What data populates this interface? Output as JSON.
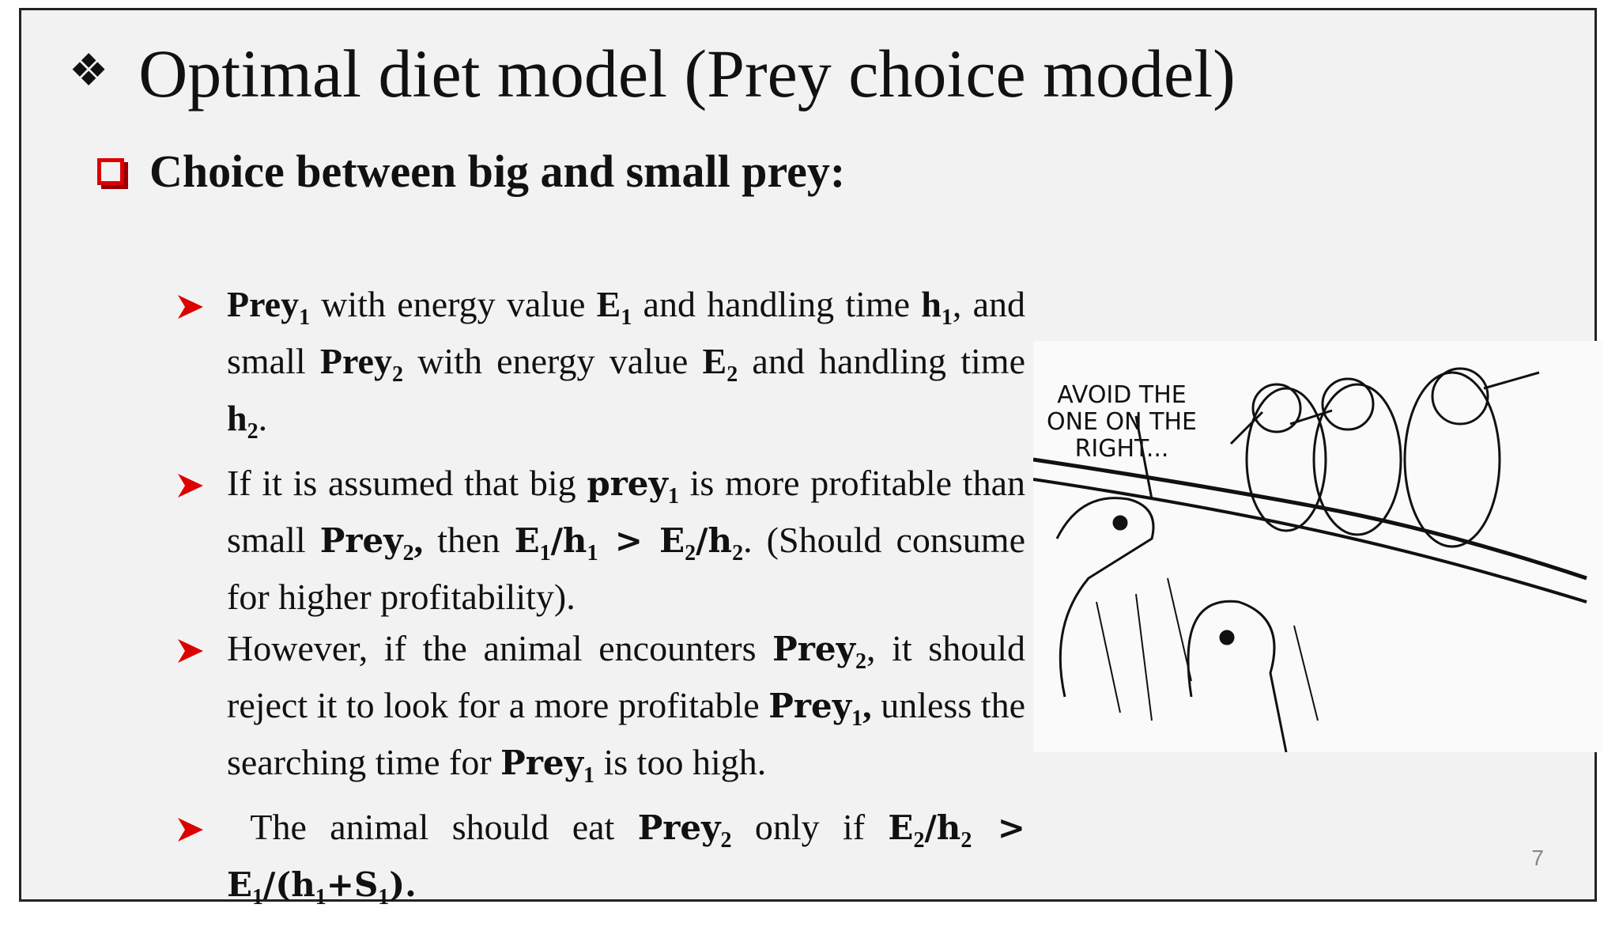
{
  "title": "Optimal diet model (Prey choice model)",
  "subtitle": "Choice between big and small prey:",
  "bullets": [
    [
      "Prey",
      "1",
      " with energy value ",
      "E",
      "1",
      " and handling time ",
      "h",
      "1",
      ", and small ",
      "Prey",
      "2",
      " with energy value ",
      "E",
      "2",
      " and handling time ",
      "h",
      "2",
      "."
    ],
    [
      "If it is assumed that big ",
      "prey",
      "1",
      " is more profitable than small ",
      "Prey",
      "2",
      ",",
      " then ",
      "E",
      "1",
      "/h",
      "1",
      " > ",
      "E",
      "2",
      "/h",
      "2",
      ".",
      " (Should consume for higher profitability)."
    ],
    [
      "However, if the animal encounters ",
      "Prey",
      "2",
      ", it should reject it to look for a more profitable ",
      "Prey",
      "1",
      ",",
      " unless the searching time for ",
      "Prey",
      "1",
      " is too high."
    ],
    [
      "The animal should eat ",
      "Prey",
      "2",
      " only if ",
      "E",
      "2",
      "/h",
      "2",
      " > ",
      "E",
      "1",
      "/(h",
      "1",
      "+S",
      "1",
      ")."
    ]
  ],
  "cartoon": {
    "caption": "AVOID THE ONE ON THE RIGHT..."
  },
  "page_number": "7"
}
